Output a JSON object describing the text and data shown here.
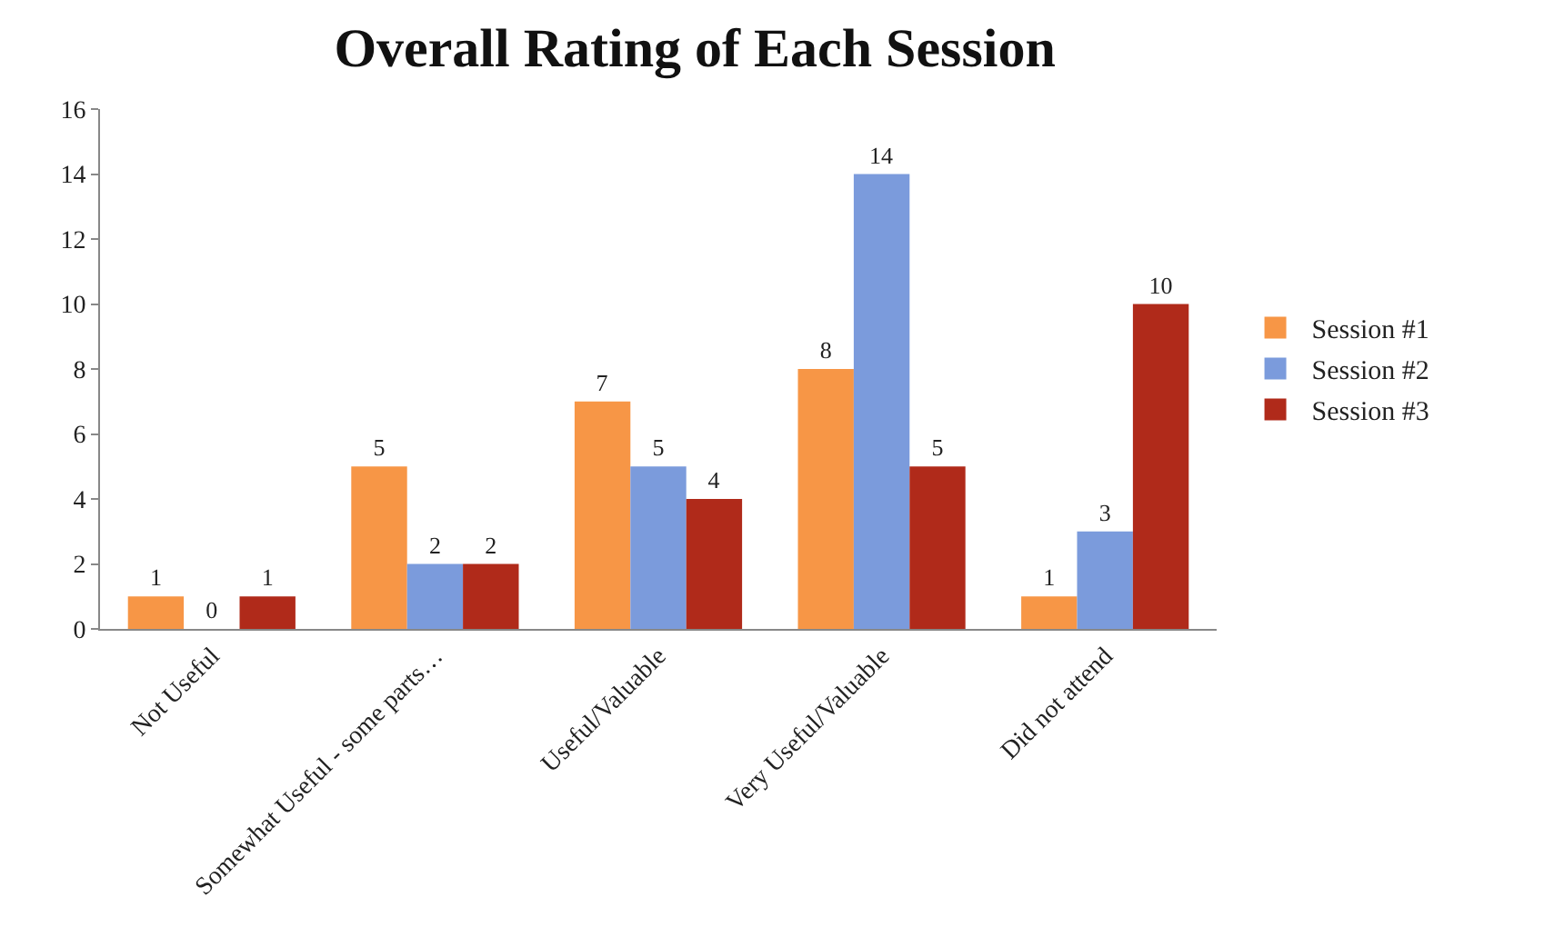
{
  "chart_data": {
    "type": "bar",
    "title": "Overall Rating of Each Session",
    "categories": [
      "Not Useful",
      "Somewhat Useful - some parts…",
      "Useful/Valuable",
      "Very Useful/Valuable",
      "Did not attend"
    ],
    "series": [
      {
        "name": "Session #1",
        "color": "#f79646",
        "values": [
          1,
          5,
          7,
          8,
          1
        ]
      },
      {
        "name": "Session #2",
        "color": "#7b9bdc",
        "values": [
          0,
          2,
          5,
          14,
          3
        ]
      },
      {
        "name": "Session #3",
        "color": "#b02a1a",
        "values": [
          1,
          2,
          4,
          5,
          10
        ]
      }
    ],
    "ylim": [
      0,
      16
    ],
    "yticks": [
      0,
      2,
      4,
      6,
      8,
      10,
      12,
      14,
      16
    ],
    "grid": false,
    "legend": "right",
    "data_labels": true
  }
}
